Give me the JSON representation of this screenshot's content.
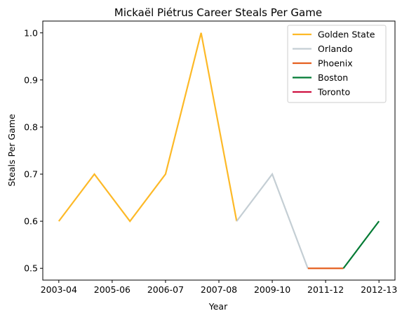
{
  "chart_data": {
    "type": "line",
    "title": "Mickaël Piétrus Career Steals Per Game",
    "xlabel": "Year",
    "ylabel": "Steals Per Game",
    "x_tick_labels": [
      "2003-04",
      "2005-06",
      "2006-07",
      "2007-08",
      "2009-10",
      "2011-12",
      "2012-13"
    ],
    "y_ticks": [
      0.5,
      0.6,
      0.7,
      0.8,
      0.9,
      1.0
    ],
    "y_tick_labels": [
      "0.5",
      "0.6",
      "0.7",
      "0.8",
      "0.9",
      "1.0"
    ],
    "xlim": [
      -0.45,
      9.45
    ],
    "ylim": [
      0.475,
      1.025
    ],
    "grid": false,
    "legend_position": "top-right",
    "series": [
      {
        "name": "Golden State",
        "color": "#FDB927",
        "x": [
          0,
          1,
          2,
          3,
          4,
          5
        ],
        "y": [
          0.6,
          0.7,
          0.6,
          0.7,
          1.0,
          0.6
        ]
      },
      {
        "name": "Orlando",
        "color": "#C4CED4",
        "x": [
          5,
          6,
          7
        ],
        "y": [
          0.6,
          0.7,
          0.5
        ]
      },
      {
        "name": "Phoenix",
        "color": "#E56020",
        "x": [
          7,
          8
        ],
        "y": [
          0.5,
          0.5
        ]
      },
      {
        "name": "Boston",
        "color": "#007A33",
        "x": [
          8,
          9
        ],
        "y": [
          0.5,
          0.6
        ]
      },
      {
        "name": "Toronto",
        "color": "#CE1141",
        "x": [],
        "y": []
      }
    ]
  }
}
